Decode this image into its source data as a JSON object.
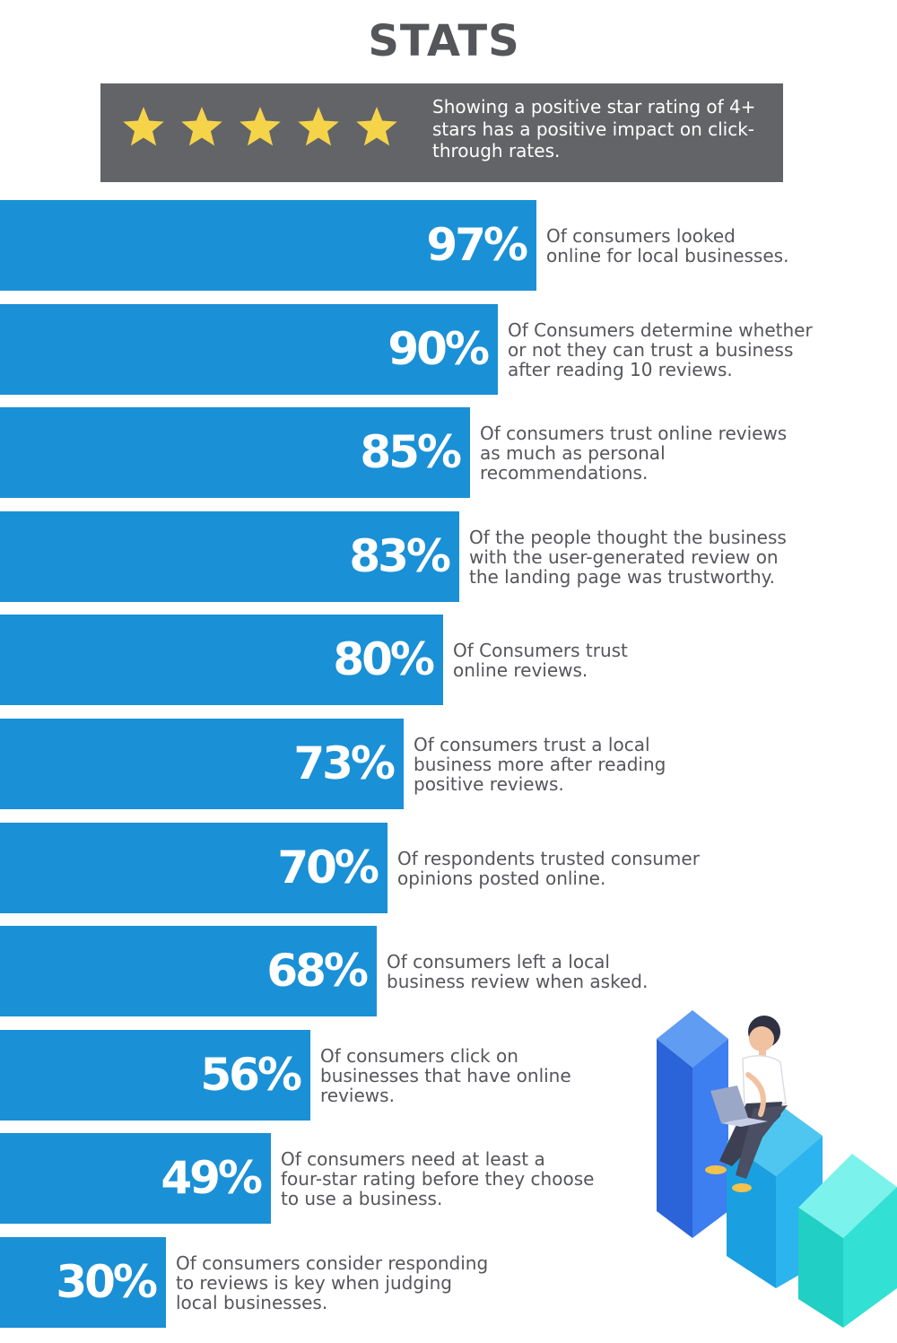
{
  "title": "STATS",
  "banner": {
    "text": "Showing a positive star rating of 4+ stars has a positive impact on click-through rates.",
    "star_count": 5,
    "star_color": "#f5d44a",
    "background_color": "#636467"
  },
  "colors": {
    "bar": "#1a90d6",
    "text": "#55565a"
  },
  "chart_data": {
    "type": "bar",
    "orientation": "horizontal",
    "unit": "%",
    "values": [
      97,
      90,
      85,
      83,
      80,
      73,
      70,
      68,
      56,
      49,
      30
    ],
    "value_labels": [
      "97%",
      "90%",
      "85%",
      "83%",
      "80%",
      "73%",
      "70%",
      "68%",
      "56%",
      "49%",
      "30%"
    ],
    "categories": [
      [
        "Of consumers looked",
        "online for local businesses."
      ],
      [
        "Of Consumers determine whether",
        "or not they can trust a business",
        "after reading 10 reviews."
      ],
      [
        "Of consumers trust online reviews",
        "as much as personal",
        "recommendations."
      ],
      [
        "Of the people thought the business",
        "with the user-generated review on",
        "the landing page was trustworthy."
      ],
      [
        "Of Consumers trust",
        "online reviews."
      ],
      [
        "Of consumers trust a local",
        "business more after reading",
        "positive reviews."
      ],
      [
        "Of respondents trusted consumer",
        "opinions posted online."
      ],
      [
        "Of consumers left a local",
        "business review when asked."
      ],
      [
        "Of consumers click on",
        "businesses that have online",
        "reviews."
      ],
      [
        "Of consumers need at least a",
        "four-star rating before they choose",
        "to use a business."
      ],
      [
        "Of consumers consider responding",
        "to reviews is key when judging",
        "local businesses."
      ]
    ]
  },
  "illustration": {
    "icon": "person-with-laptop-on-bar-blocks-illustration"
  }
}
